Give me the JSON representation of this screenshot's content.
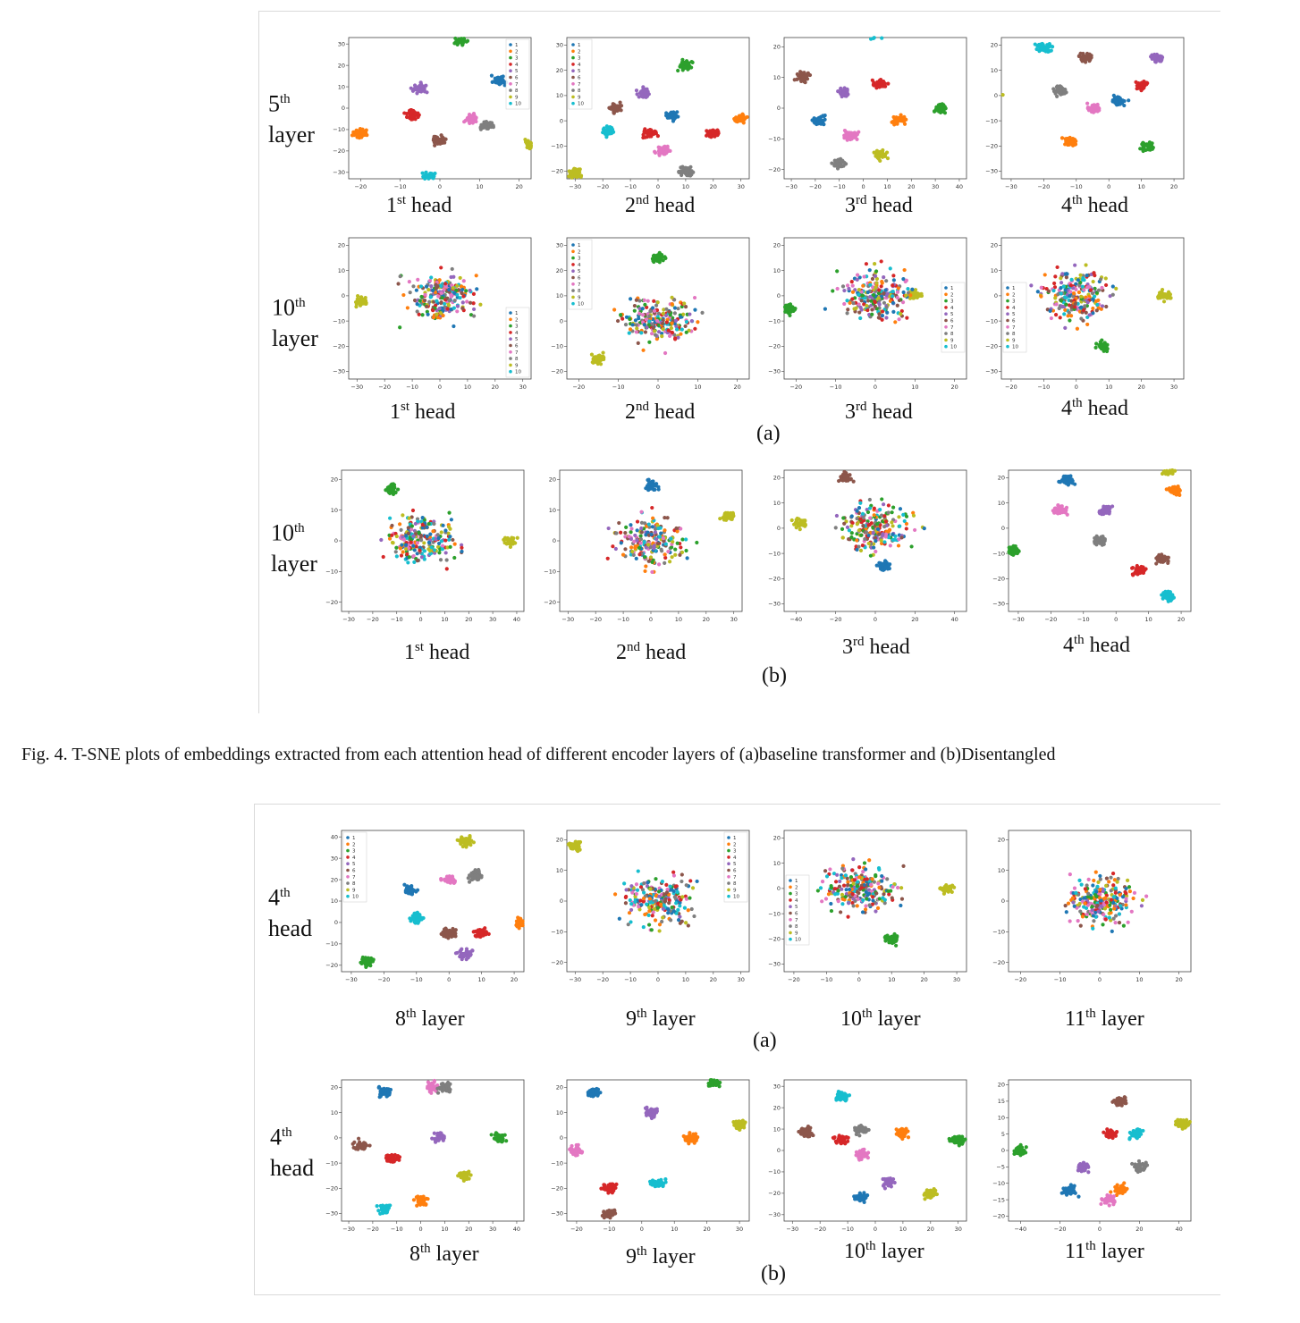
{
  "colors": {
    "1": "#1f77b4",
    "2": "#ff7f0e",
    "3": "#2ca02c",
    "4": "#d62728",
    "5": "#9467bd",
    "6": "#8c564b",
    "7": "#e377c2",
    "8": "#7f7f7f",
    "9": "#bcbd22",
    "10": "#17becf"
  },
  "legend_labels": [
    "1",
    "2",
    "3",
    "4",
    "5",
    "6",
    "7",
    "8",
    "9",
    "10"
  ],
  "figure4": {
    "rows": [
      {
        "label_sup": "th",
        "label_num": "5",
        "label_word": "layer"
      },
      {
        "label_sup": "th",
        "label_num": "10",
        "label_word": "layer"
      },
      {
        "label_sup": "th",
        "label_num": "10",
        "label_word": "layer"
      }
    ],
    "head_captions": [
      {
        "num": "1",
        "sup": "st",
        "word": "head"
      },
      {
        "num": "2",
        "sup": "nd",
        "word": "head"
      },
      {
        "num": "3",
        "sup": "rd",
        "word": "head"
      },
      {
        "num": "4",
        "sup": "th",
        "word": "head"
      }
    ],
    "panel_a": "(a)",
    "panel_b": "(b)",
    "caption": "Fig. 4.  T-SNE plots of embeddings extracted from each attention head of different encoder layers of (a)baseline transformer and (b)Disentangled"
  },
  "figure5": {
    "rows": [
      {
        "label_sup": "th",
        "label_num": "4",
        "label_word": "head"
      },
      {
        "label_sup": "th",
        "label_num": "4",
        "label_word": "head"
      }
    ],
    "layer_captions": [
      {
        "num": "8",
        "sup": "th",
        "word": "layer"
      },
      {
        "num": "9",
        "sup": "th",
        "word": "layer"
      },
      {
        "num": "10",
        "sup": "th",
        "word": "layer"
      },
      {
        "num": "11",
        "sup": "th",
        "word": "layer"
      }
    ],
    "panel_a": "(a)",
    "panel_b": "(b)"
  },
  "chart_data": [
    {
      "type": "scatter",
      "id": "f4a-r1-h1",
      "x_ticks": [
        "−20",
        "−10",
        "0",
        "10",
        "20"
      ],
      "y_ticks": [
        "−30",
        "−20",
        "−10",
        "0",
        "10",
        "20",
        "30"
      ],
      "legend": "top-right",
      "clusters": [
        [
          5,
          32,
          "3"
        ],
        [
          -20,
          -12,
          "2"
        ],
        [
          -3,
          -32,
          "10"
        ],
        [
          23,
          -17,
          "9"
        ],
        [
          15,
          13,
          "1"
        ],
        [
          -7,
          -3,
          "4"
        ],
        [
          0,
          -15,
          "6"
        ],
        [
          8,
          -5,
          "7"
        ],
        [
          12,
          -8,
          "8"
        ],
        [
          -5,
          9,
          "5"
        ]
      ]
    },
    {
      "type": "scatter",
      "id": "f4a-r1-h2",
      "x_ticks": [
        "−30",
        "−20",
        "−10",
        "0",
        "10",
        "20",
        "30"
      ],
      "y_ticks": [
        "−20",
        "−10",
        "0",
        "10",
        "20",
        "30"
      ],
      "legend": "top-left",
      "clusters": [
        [
          -30,
          -21,
          "9"
        ],
        [
          10,
          22,
          "3"
        ],
        [
          30,
          1,
          "2"
        ],
        [
          -18,
          -4,
          "10"
        ],
        [
          5,
          2,
          "1"
        ],
        [
          -15,
          5,
          "6"
        ],
        [
          -3,
          -5,
          "4"
        ],
        [
          2,
          -12,
          "7"
        ],
        [
          10,
          -20,
          "8"
        ],
        [
          -5,
          11,
          "5"
        ],
        [
          20,
          -5,
          "4"
        ]
      ]
    },
    {
      "type": "scatter",
      "id": "f4a-r1-h3",
      "x_ticks": [
        "−30",
        "−20",
        "−10",
        "0",
        "10",
        "20",
        "30",
        "40"
      ],
      "y_ticks": [
        "−20",
        "−10",
        "0",
        "10",
        "20"
      ],
      "legend": "none",
      "clusters": [
        [
          5,
          24,
          "10"
        ],
        [
          -25,
          10,
          "6"
        ],
        [
          -18,
          -4,
          "1"
        ],
        [
          -8,
          5,
          "5"
        ],
        [
          7,
          8,
          "4"
        ],
        [
          15,
          -4,
          "2"
        ],
        [
          -5,
          -9,
          "7"
        ],
        [
          -10,
          -18,
          "8"
        ],
        [
          7,
          -15,
          "9"
        ],
        [
          32,
          0,
          "3"
        ]
      ]
    },
    {
      "type": "scatter",
      "id": "f4a-r1-h4",
      "x_ticks": [
        "−30",
        "−20",
        "−10",
        "0",
        "10",
        "20"
      ],
      "y_ticks": [
        "−30",
        "−20",
        "−10",
        "0",
        "10",
        "20"
      ],
      "legend": "none",
      "clusters": [
        [
          -20,
          19,
          "10"
        ],
        [
          -35,
          0,
          "9"
        ],
        [
          -7,
          15,
          "6"
        ],
        [
          -15,
          2,
          "8"
        ],
        [
          3,
          -2,
          "1"
        ],
        [
          15,
          15,
          "5"
        ],
        [
          10,
          4,
          "4"
        ],
        [
          -12,
          -18,
          "2"
        ],
        [
          12,
          -20,
          "3"
        ],
        [
          -5,
          -5,
          "7"
        ]
      ]
    },
    {
      "type": "scatter",
      "id": "f4a-r2-h1",
      "x_ticks": [
        "−30",
        "−20",
        "−10",
        "0",
        "10",
        "20",
        "30"
      ],
      "y_ticks": [
        "−30",
        "−20",
        "−10",
        "0",
        "10",
        "20"
      ],
      "legend": "bottom-right",
      "clusters": [
        [
          -28,
          -2,
          "9"
        ],
        [
          0,
          0,
          "mixed"
        ]
      ]
    },
    {
      "type": "scatter",
      "id": "f4a-r2-h2",
      "x_ticks": [
        "−20",
        "−10",
        "0",
        "10",
        "20"
      ],
      "y_ticks": [
        "−20",
        "−10",
        "0",
        "10",
        "20",
        "30"
      ],
      "legend": "top-left",
      "clusters": [
        [
          0,
          25,
          "3"
        ],
        [
          -15,
          -15,
          "9"
        ],
        [
          0,
          0,
          "mixed"
        ]
      ]
    },
    {
      "type": "scatter",
      "id": "f4a-r2-h3",
      "x_ticks": [
        "−20",
        "−10",
        "0",
        "10",
        "20"
      ],
      "y_ticks": [
        "−30",
        "−20",
        "−10",
        "0",
        "10",
        "20"
      ],
      "legend": "right",
      "clusters": [
        [
          -22,
          -5,
          "3"
        ],
        [
          10,
          0,
          "9"
        ],
        [
          0,
          0,
          "mixed"
        ]
      ]
    },
    {
      "type": "scatter",
      "id": "f4a-r2-h4",
      "x_ticks": [
        "−20",
        "−10",
        "0",
        "10",
        "20",
        "30"
      ],
      "y_ticks": [
        "−30",
        "−20",
        "−10",
        "0",
        "10",
        "20"
      ],
      "legend": "left",
      "clusters": [
        [
          27,
          0,
          "9"
        ],
        [
          8,
          -20,
          "3"
        ],
        [
          0,
          0,
          "mixed"
        ]
      ]
    },
    {
      "type": "scatter",
      "id": "f4b-h1",
      "x_ticks": [
        "−30",
        "−20",
        "−10",
        "0",
        "10",
        "20",
        "30",
        "40"
      ],
      "y_ticks": [
        "−20",
        "−10",
        "0",
        "10",
        "20"
      ],
      "legend": "none",
      "clusters": [
        [
          -12,
          17,
          "3"
        ],
        [
          37,
          0,
          "9"
        ],
        [
          0,
          0,
          "mixed"
        ]
      ]
    },
    {
      "type": "scatter",
      "id": "f4b-h2",
      "x_ticks": [
        "−30",
        "−20",
        "−10",
        "0",
        "10",
        "20",
        "30"
      ],
      "y_ticks": [
        "−20",
        "−10",
        "0",
        "10",
        "20"
      ],
      "legend": "none",
      "clusters": [
        [
          0,
          18,
          "1"
        ],
        [
          28,
          8,
          "9"
        ],
        [
          0,
          0,
          "mixed"
        ]
      ]
    },
    {
      "type": "scatter",
      "id": "f4b-h3",
      "x_ticks": [
        "−40",
        "−20",
        "0",
        "20",
        "40"
      ],
      "y_ticks": [
        "−30",
        "−20",
        "−10",
        "0",
        "10",
        "20"
      ],
      "legend": "none",
      "clusters": [
        [
          -38,
          2,
          "9"
        ],
        [
          5,
          -15,
          "1"
        ],
        [
          -15,
          20,
          "6"
        ],
        [
          0,
          0,
          "mixed"
        ]
      ]
    },
    {
      "type": "scatter",
      "id": "f4b-h4",
      "x_ticks": [
        "−30",
        "−20",
        "−10",
        "0",
        "10",
        "20"
      ],
      "y_ticks": [
        "−30",
        "−20",
        "−10",
        "0",
        "10",
        "20"
      ],
      "legend": "none",
      "clusters": [
        [
          -15,
          19,
          "1"
        ],
        [
          -17,
          7,
          "7"
        ],
        [
          -32,
          -9,
          "3"
        ],
        [
          -3,
          7,
          "5"
        ],
        [
          -5,
          -5,
          "8"
        ],
        [
          16,
          23,
          "9"
        ],
        [
          18,
          15,
          "2"
        ],
        [
          7,
          -17,
          "4"
        ],
        [
          14,
          -12,
          "6"
        ],
        [
          16,
          -27,
          "10"
        ]
      ]
    },
    {
      "type": "scatter",
      "id": "f5a-l8",
      "x_ticks": [
        "−30",
        "−20",
        "−10",
        "0",
        "10",
        "20"
      ],
      "y_ticks": [
        "−20",
        "−10",
        "0",
        "10",
        "20",
        "30",
        "40"
      ],
      "legend": "top-left",
      "clusters": [
        [
          5,
          38,
          "9"
        ],
        [
          -25,
          -18,
          "3"
        ],
        [
          22,
          0,
          "2"
        ],
        [
          -12,
          15,
          "1"
        ],
        [
          0,
          -5,
          "6"
        ],
        [
          -10,
          2,
          "10"
        ],
        [
          0,
          20,
          "7"
        ],
        [
          8,
          22,
          "8"
        ],
        [
          5,
          -15,
          "5"
        ],
        [
          10,
          -5,
          "4"
        ]
      ]
    },
    {
      "type": "scatter",
      "id": "f5a-l9",
      "x_ticks": [
        "−30",
        "−20",
        "−10",
        "0",
        "10",
        "20",
        "30"
      ],
      "y_ticks": [
        "−20",
        "−10",
        "0",
        "10",
        "20"
      ],
      "legend": "top-right",
      "clusters": [
        [
          -30,
          18,
          "9"
        ],
        [
          0,
          0,
          "mixed"
        ]
      ]
    },
    {
      "type": "scatter",
      "id": "f5a-l10",
      "x_ticks": [
        "−20",
        "−10",
        "0",
        "10",
        "20",
        "30"
      ],
      "y_ticks": [
        "−30",
        "−20",
        "−10",
        "0",
        "10",
        "20"
      ],
      "legend": "left",
      "clusters": [
        [
          27,
          0,
          "9"
        ],
        [
          10,
          -20,
          "3"
        ],
        [
          0,
          0,
          "mixed"
        ]
      ]
    },
    {
      "type": "scatter",
      "id": "f5a-l11",
      "x_ticks": [
        "−20",
        "−10",
        "0",
        "10",
        "20"
      ],
      "y_ticks": [
        "−20",
        "−10",
        "0",
        "10",
        "20"
      ],
      "legend": "none",
      "clusters": [
        [
          0,
          25,
          "9"
        ],
        [
          0,
          0,
          "mixed"
        ]
      ]
    },
    {
      "type": "scatter",
      "id": "f5b-l8",
      "x_ticks": [
        "−30",
        "−20",
        "−10",
        "0",
        "10",
        "20",
        "30",
        "40"
      ],
      "y_ticks": [
        "−30",
        "−20",
        "−10",
        "0",
        "10",
        "20"
      ],
      "legend": "none",
      "clusters": [
        [
          -15,
          18,
          "1"
        ],
        [
          -25,
          -3,
          "6"
        ],
        [
          -12,
          -8,
          "4"
        ],
        [
          -15,
          -28,
          "10"
        ],
        [
          0,
          -25,
          "2"
        ],
        [
          5,
          20,
          "7"
        ],
        [
          10,
          20,
          "8"
        ],
        [
          8,
          0,
          "5"
        ],
        [
          18,
          -15,
          "9"
        ],
        [
          33,
          0,
          "3"
        ]
      ]
    },
    {
      "type": "scatter",
      "id": "f5b-l9",
      "x_ticks": [
        "−20",
        "−10",
        "0",
        "10",
        "20",
        "30"
      ],
      "y_ticks": [
        "−30",
        "−20",
        "−10",
        "0",
        "10",
        "20"
      ],
      "legend": "none",
      "clusters": [
        [
          -15,
          18,
          "1"
        ],
        [
          22,
          22,
          "3"
        ],
        [
          30,
          5,
          "9"
        ],
        [
          15,
          0,
          "2"
        ],
        [
          -20,
          -5,
          "7"
        ],
        [
          -10,
          -20,
          "4"
        ],
        [
          -10,
          -30,
          "6"
        ],
        [
          5,
          -18,
          "10"
        ],
        [
          3,
          10,
          "5"
        ]
      ]
    },
    {
      "type": "scatter",
      "id": "f5b-l10",
      "x_ticks": [
        "−30",
        "−20",
        "−10",
        "0",
        "10",
        "20",
        "30"
      ],
      "y_ticks": [
        "−30",
        "−20",
        "−10",
        "0",
        "10",
        "20",
        "30"
      ],
      "legend": "none",
      "clusters": [
        [
          -12,
          25,
          "10"
        ],
        [
          -25,
          8,
          "6"
        ],
        [
          -12,
          5,
          "4"
        ],
        [
          -5,
          10,
          "8"
        ],
        [
          -5,
          -2,
          "7"
        ],
        [
          10,
          8,
          "2"
        ],
        [
          30,
          5,
          "3"
        ],
        [
          -5,
          -22,
          "1"
        ],
        [
          5,
          -15,
          "5"
        ],
        [
          20,
          -20,
          "9"
        ]
      ]
    },
    {
      "type": "scatter",
      "id": "f5b-l11",
      "x_ticks": [
        "−40",
        "−20",
        "0",
        "20",
        "40"
      ],
      "y_ticks": [
        "−20",
        "−15",
        "−10",
        "−5",
        "0",
        "5",
        "10",
        "15",
        "20"
      ],
      "legend": "none",
      "clusters": [
        [
          -40,
          0,
          "3"
        ],
        [
          42,
          8,
          "9"
        ],
        [
          -15,
          -12,
          "1"
        ],
        [
          10,
          15,
          "6"
        ],
        [
          5,
          5,
          "4"
        ],
        [
          18,
          5,
          "10"
        ],
        [
          -8,
          -5,
          "5"
        ],
        [
          10,
          -12,
          "2"
        ],
        [
          5,
          -15,
          "7"
        ],
        [
          20,
          -5,
          "8"
        ]
      ]
    }
  ]
}
